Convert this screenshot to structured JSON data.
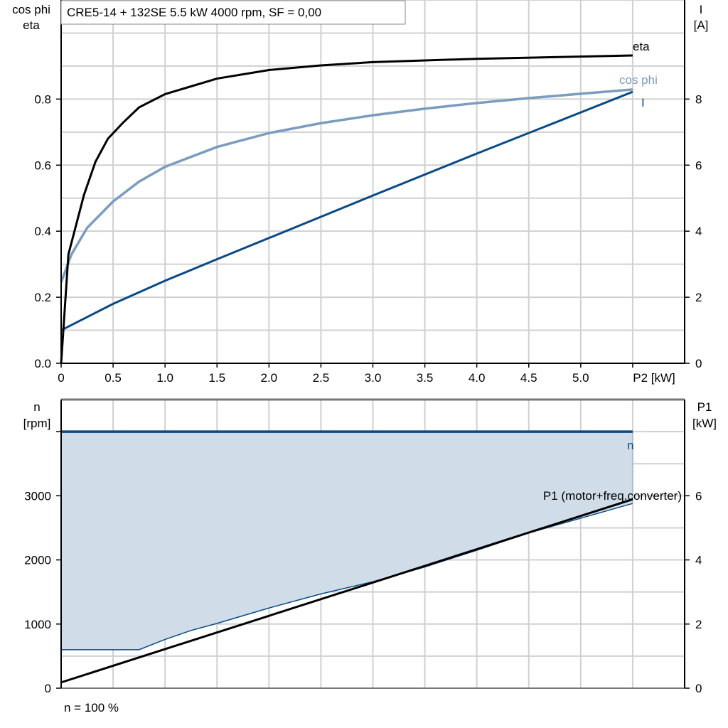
{
  "title": "CRE5-14 + 132SE   5.5 kW   4000 rpm, SF = 0,00",
  "footer": "n = 100 %",
  "colors": {
    "eta": "#000000",
    "cos_phi": "#7a9cbf",
    "I": "#0b4a85",
    "n": "#0b4a85",
    "P1": "#000000",
    "fill": "#d0dce8",
    "grid": "#d0d0d0"
  },
  "chart_data": [
    {
      "type": "line",
      "xlabel": "P2 [kW]",
      "ylabel_left": [
        "cos phi",
        "eta"
      ],
      "ylabel_right": [
        "I",
        "[A]"
      ],
      "xlim": [
        0,
        6
      ],
      "ylim_left": [
        0,
        1.1
      ],
      "ylim_right": [
        0,
        11
      ],
      "xticks": [
        "0",
        "0.5",
        "1.0",
        "1.5",
        "2.0",
        "2.5",
        "3.0",
        "3.5",
        "4.0",
        "4.5",
        "5.0"
      ],
      "xtick_values": [
        0,
        0.5,
        1,
        1.5,
        2,
        2.5,
        3,
        3.5,
        4,
        4.5,
        5
      ],
      "yticks_left": [
        "0.0",
        "0.2",
        "0.4",
        "0.6",
        "0.8"
      ],
      "yticks_right": [
        "0",
        "2",
        "4",
        "6",
        "8"
      ],
      "grid": true,
      "series": [
        {
          "name": "eta",
          "axis": "left",
          "x": [
            0,
            0.07,
            0.22,
            0.33,
            0.45,
            0.6,
            0.75,
            1.0,
            1.5,
            2.0,
            2.5,
            3.0,
            4.0,
            5.5
          ],
          "y": [
            0,
            0.33,
            0.51,
            0.61,
            0.68,
            0.73,
            0.775,
            0.815,
            0.862,
            0.888,
            0.902,
            0.912,
            0.922,
            0.932
          ]
        },
        {
          "name": "cos phi",
          "axis": "left",
          "x": [
            0,
            0.1,
            0.25,
            0.5,
            0.75,
            1.0,
            1.5,
            2.0,
            2.5,
            3.0,
            3.5,
            4.0,
            4.5,
            5.0,
            5.5
          ],
          "y": [
            0.245,
            0.33,
            0.41,
            0.49,
            0.55,
            0.595,
            0.655,
            0.697,
            0.727,
            0.751,
            0.771,
            0.788,
            0.803,
            0.816,
            0.829
          ]
        },
        {
          "name": "I",
          "axis": "right",
          "x": [
            0,
            0.5,
            1.0,
            1.5,
            3.0,
            4.0,
            5.5
          ],
          "y": [
            1.0,
            1.8,
            2.5,
            3.15,
            5.08,
            6.35,
            8.22
          ]
        }
      ]
    },
    {
      "type": "area",
      "xlim": [
        0,
        6
      ],
      "ylim_left": [
        0,
        4500
      ],
      "ylim_right": [
        0,
        9
      ],
      "ylabel_left": [
        "n",
        "[rpm]"
      ],
      "ylabel_right": [
        "P1",
        "[kW]"
      ],
      "yticks_left": [
        "0",
        "1000",
        "2000",
        "3000"
      ],
      "yticks_right": [
        "0",
        "2",
        "4",
        "6"
      ],
      "grid": true,
      "series": [
        {
          "name": "n",
          "axis": "left",
          "x": [
            0,
            5.5
          ],
          "y": [
            4000,
            4000
          ]
        },
        {
          "axis": "left",
          "x": [
            0,
            0.75,
            1.0,
            1.25,
            1.5,
            2.0,
            2.5,
            3.0,
            3.5,
            4.0,
            4.5,
            5.0,
            5.5
          ],
          "y": [
            600,
            600,
            760,
            900,
            1010,
            1250,
            1470,
            1660,
            1890,
            2150,
            2420,
            2650,
            2880
          ]
        },
        {
          "name": "P1 (motor+freq.converter)",
          "axis": "right",
          "x": [
            0,
            5.5
          ],
          "y": [
            0.18,
            5.89
          ]
        }
      ]
    }
  ]
}
